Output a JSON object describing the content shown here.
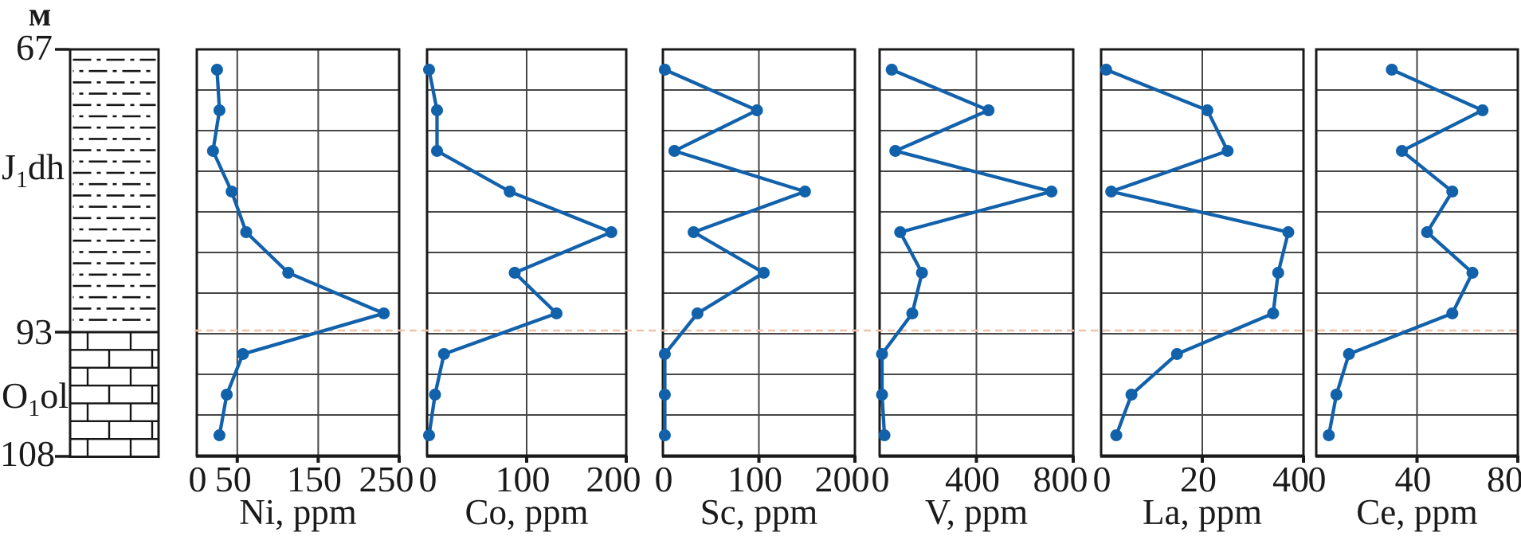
{
  "figure": {
    "description": "Depth profiles of trace elements (Ni, Co, Sc, V, La, Ce) with stratigraphic column"
  },
  "depth_axis": {
    "unit_label": "м",
    "ticks": [
      {
        "label": "67",
        "depth_m": 67
      },
      {
        "label": "93",
        "depth_m": 93
      },
      {
        "label": "108",
        "depth_m": 108
      }
    ],
    "strat_units": [
      {
        "prefix": "J",
        "sub": "1",
        "suffix": "dh"
      },
      {
        "prefix": "O",
        "sub": "1",
        "suffix": "ol"
      }
    ]
  },
  "column": {
    "upper_lithology": "dash-dot-pattern-unit",
    "lower_lithology": "brick-limestone-pattern-unit",
    "boundary_depth_m": 93
  },
  "colors": {
    "series": "#1261AB",
    "boundary_dashed": "#F0C3A9",
    "gridline": "#464646",
    "frame": "#1A1A1A",
    "lithology_line": "#141414",
    "text": "#1A1A1A"
  },
  "samples_per_chart": 10,
  "boundary_between_sample_rows": [
    7,
    8
  ],
  "chart_data": [
    {
      "type": "line",
      "element": "Ni",
      "title": "Ni, ppm",
      "xlim": [
        0,
        250
      ],
      "xtick_values": [
        0,
        50,
        150,
        250
      ],
      "values": [
        25,
        28,
        20,
        43,
        61,
        113,
        231,
        57,
        37,
        28
      ]
    },
    {
      "type": "line",
      "element": "Co",
      "title": "Co, ppm",
      "xlim": [
        0,
        200
      ],
      "xtick_values": [
        0,
        100,
        200
      ],
      "values": [
        2,
        10,
        10,
        83,
        185,
        88,
        130,
        17,
        8,
        2
      ]
    },
    {
      "type": "line",
      "element": "Sc",
      "title": "Sc, ppm",
      "xlim": [
        0,
        200
      ],
      "xtick_values": [
        0,
        100,
        200
      ],
      "values": [
        2,
        98,
        12,
        148,
        32,
        105,
        36,
        2,
        2,
        2
      ]
    },
    {
      "type": "line",
      "element": "V",
      "title": "V, ppm",
      "xlim": [
        0,
        800
      ],
      "xtick_values": [
        0,
        400,
        800
      ],
      "values": [
        50,
        450,
        65,
        710,
        85,
        175,
        135,
        10,
        10,
        20
      ]
    },
    {
      "type": "line",
      "element": "La",
      "title": "La, ppm",
      "xlim": [
        0,
        40
      ],
      "xtick_values": [
        0,
        20,
        40
      ],
      "values": [
        1,
        21,
        25,
        2,
        37,
        35,
        34,
        15,
        6,
        3
      ]
    },
    {
      "type": "line",
      "element": "Ce",
      "title": "Ce, ppm",
      "xlim": [
        0,
        80
      ],
      "xtick_values": [
        0,
        40,
        80
      ],
      "values": [
        30,
        66,
        34,
        54,
        44,
        62,
        54,
        13,
        8,
        5
      ]
    }
  ]
}
